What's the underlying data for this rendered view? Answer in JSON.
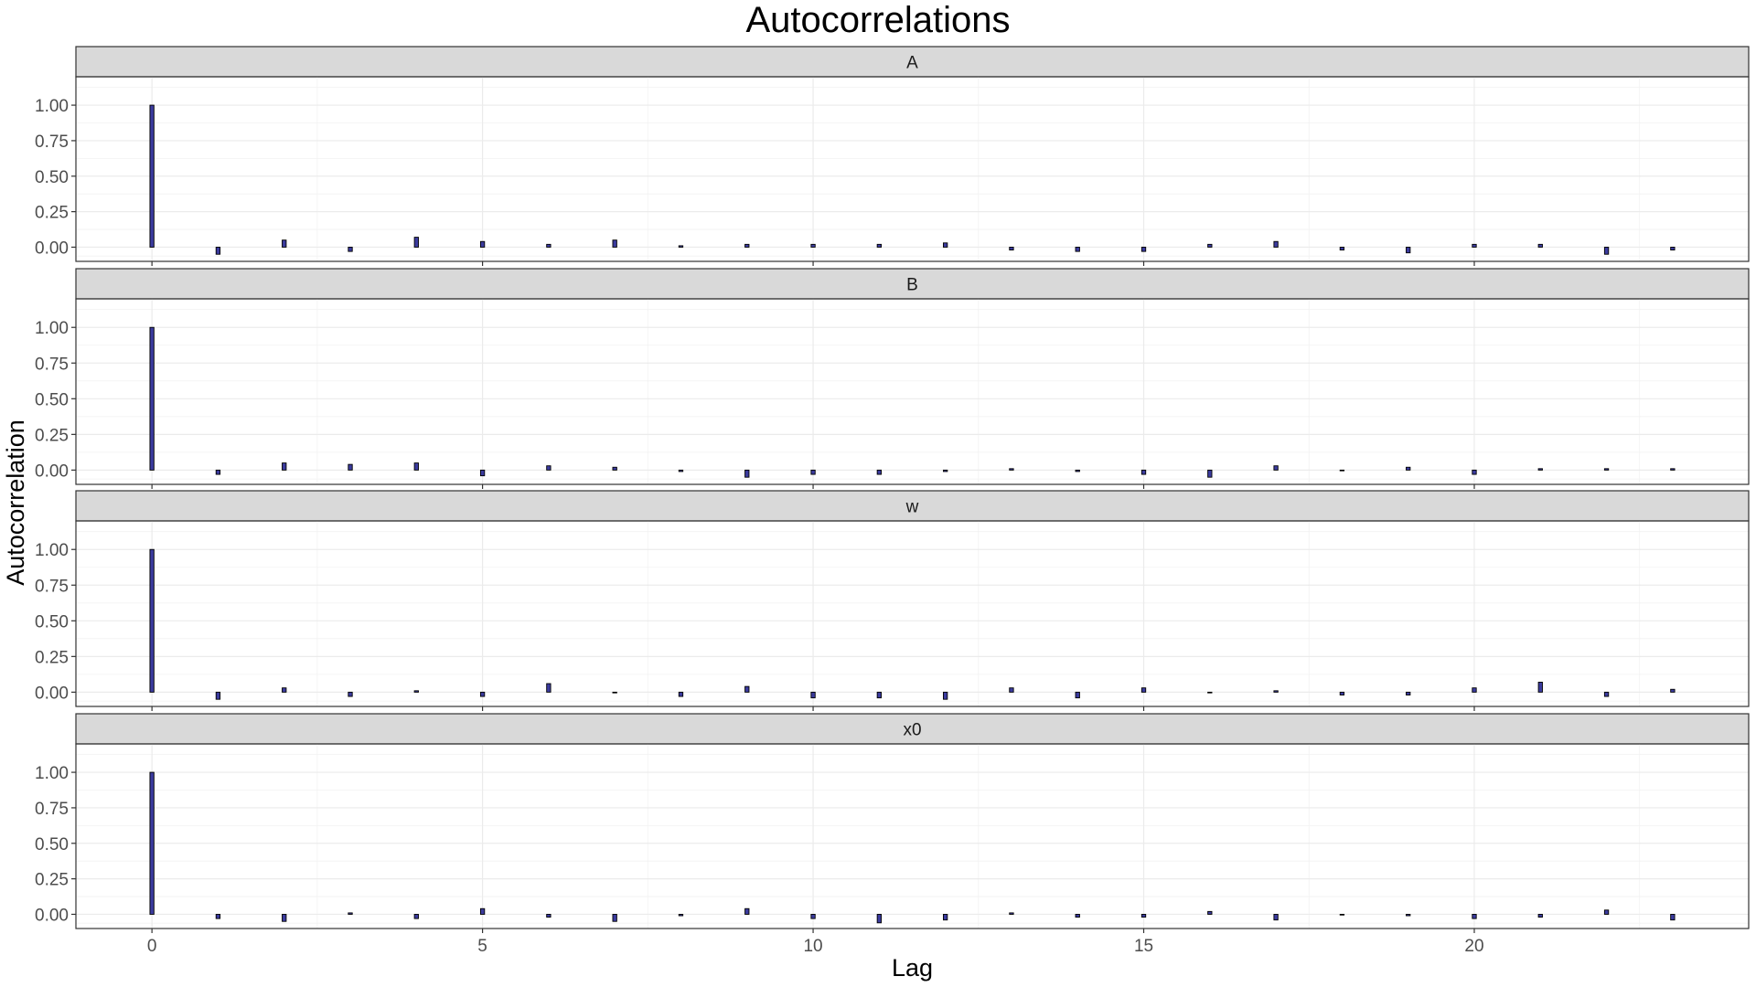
{
  "chart_data": {
    "type": "bar",
    "title": "Autocorrelations",
    "xlabel": "Lag",
    "ylabel": "Autocorrelation",
    "x": [
      0,
      1,
      2,
      3,
      4,
      5,
      6,
      7,
      8,
      9,
      10,
      11,
      12,
      13,
      14,
      15,
      16,
      17,
      18,
      19,
      20,
      21,
      22,
      23
    ],
    "xticks": [
      0,
      5,
      10,
      15,
      20
    ],
    "xtick_labels": [
      "0",
      "5",
      "10",
      "15",
      "20"
    ],
    "xlim": [
      -1.15,
      24.15
    ],
    "ylim": [
      -0.1,
      1.2
    ],
    "yticks": [
      0.0,
      0.25,
      0.5,
      0.75,
      1.0
    ],
    "ytick_labels": [
      "0.00",
      "0.25",
      "0.50",
      "0.75",
      "1.00"
    ],
    "grid": true,
    "bar_fill": "#3b3b9e",
    "bar_outline": "#000000",
    "facets": [
      {
        "name": "A",
        "values": [
          1.0,
          -0.05,
          0.05,
          -0.03,
          0.07,
          0.04,
          0.02,
          0.05,
          0.01,
          0.02,
          0.02,
          0.02,
          0.03,
          -0.02,
          -0.03,
          -0.03,
          0.02,
          0.04,
          -0.02,
          -0.04,
          0.02,
          0.02,
          -0.05,
          -0.02
        ]
      },
      {
        "name": "B",
        "values": [
          1.0,
          -0.03,
          0.05,
          0.04,
          0.05,
          -0.04,
          0.03,
          0.02,
          -0.01,
          -0.05,
          -0.03,
          -0.03,
          -0.01,
          0.01,
          -0.01,
          -0.03,
          -0.05,
          0.03,
          0.0,
          0.02,
          -0.03,
          0.01,
          0.01,
          0.01
        ]
      },
      {
        "name": "w",
        "values": [
          1.0,
          -0.05,
          0.03,
          -0.03,
          0.01,
          -0.03,
          0.06,
          0.0,
          -0.03,
          0.04,
          -0.04,
          -0.04,
          -0.05,
          0.03,
          -0.04,
          0.03,
          0.0,
          0.01,
          -0.02,
          -0.02,
          0.03,
          0.07,
          -0.03,
          0.02
        ]
      },
      {
        "name": "x0",
        "values": [
          1.0,
          -0.03,
          -0.05,
          0.01,
          -0.03,
          0.04,
          -0.02,
          -0.05,
          -0.01,
          0.04,
          -0.03,
          -0.06,
          -0.04,
          0.01,
          -0.02,
          -0.02,
          0.02,
          -0.04,
          0.0,
          -0.01,
          -0.03,
          -0.02,
          0.03,
          -0.04
        ]
      }
    ]
  }
}
